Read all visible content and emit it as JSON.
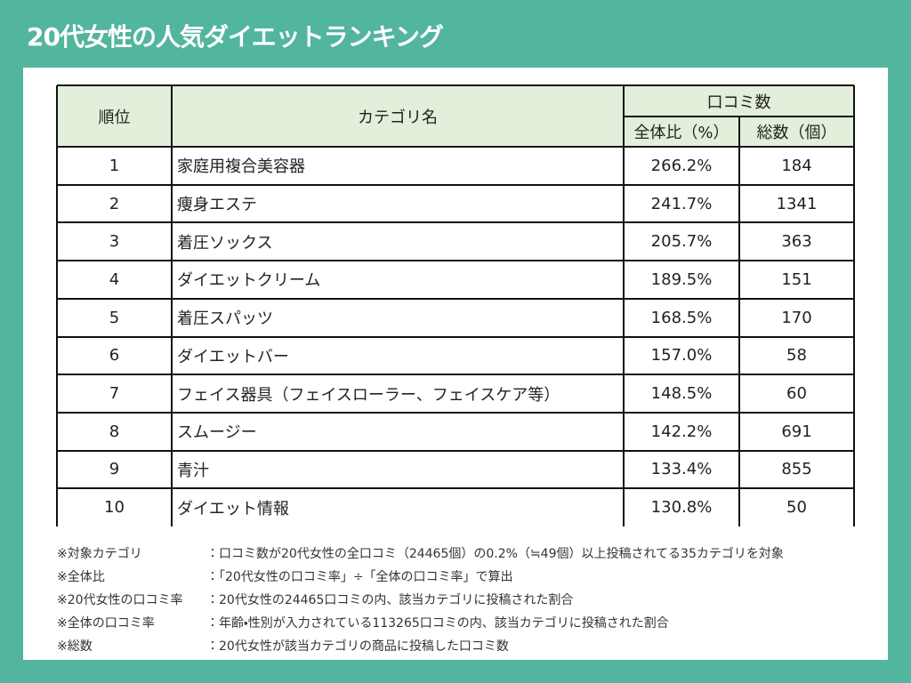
{
  "header": {
    "title": "20代女性の人気ダイエットランキング"
  },
  "table": {
    "columns": {
      "rank": "順位",
      "category": "カテゴリ名",
      "group": "口コミ数",
      "ratio": "全体比（%）",
      "total": "総数（個）"
    },
    "rows": [
      [
        "1",
        "家庭用複合美容器",
        "266.2%",
        "184"
      ],
      [
        "2",
        "痩身エステ",
        "241.7%",
        "1341"
      ],
      [
        "3",
        "着圧ソックス",
        "205.7%",
        "363"
      ],
      [
        "4",
        "ダイエットクリーム",
        "189.5%",
        "151"
      ],
      [
        "5",
        "着圧スパッツ",
        "168.5%",
        "170"
      ],
      [
        "6",
        "ダイエットバー",
        "157.0%",
        "58"
      ],
      [
        "7",
        "フェイス器具（フェイスローラー、フェイスケア等）",
        "148.5%",
        "60"
      ],
      [
        "8",
        "スムージー",
        "142.2%",
        "691"
      ],
      [
        "9",
        "青汁",
        "133.4%",
        "855"
      ],
      [
        "10",
        "ダイエット情報",
        "130.8%",
        "50"
      ]
    ]
  },
  "notes": [
    {
      "label": "※対象カテゴリ",
      "text": "：口コミ数が20代女性の全口コミ（24465個）の0.2%（≒49個）以上投稿されてる35カテゴリを対象"
    },
    {
      "label": "※全体比",
      "text": "：「20代女性の口コミ率」÷「全体の口コミ率」で算出"
    },
    {
      "label": "※20代女性の口コミ率",
      "text": "：20代女性の24465口コミの内、該当カテゴリに投稿された割合"
    },
    {
      "label": "※全体の口コミ率",
      "text": "：年齢・性別が入力されている113265口コミの内、該当カテゴリに投稿された割合"
    },
    {
      "label": "※総数",
      "text": "：20代女性が該当カテゴリの商品に投稿した口コミ数"
    }
  ]
}
